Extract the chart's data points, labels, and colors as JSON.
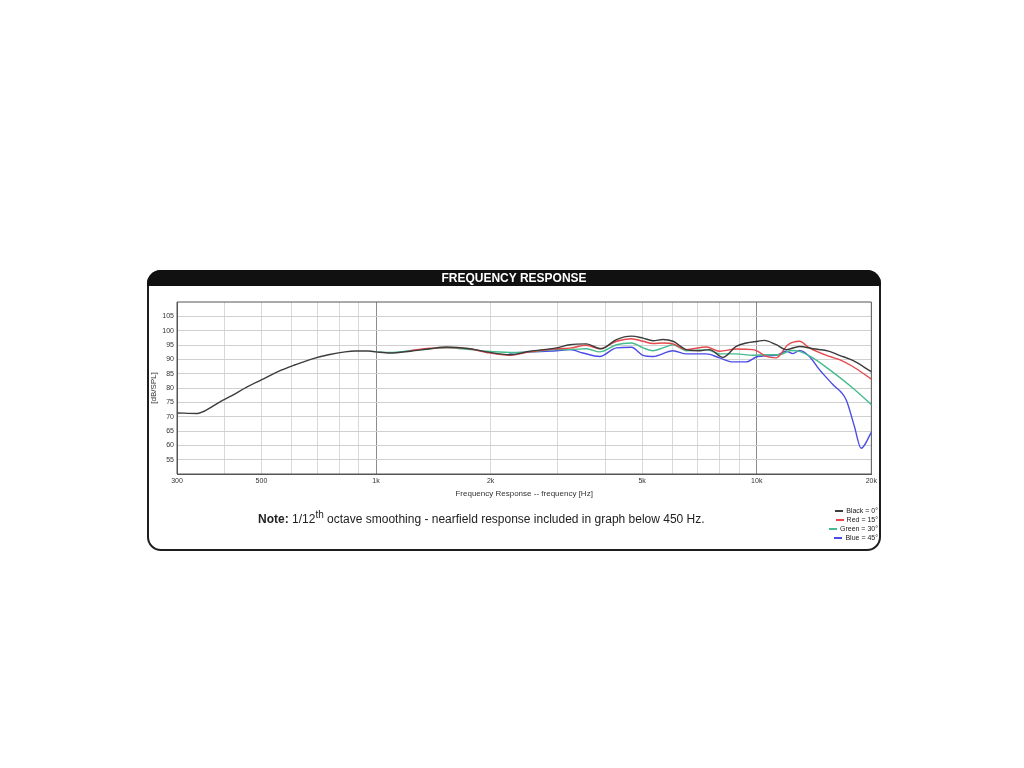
{
  "chart_data": {
    "type": "line",
    "title": "FREQUENCY RESPONSE",
    "xlabel": "Frequency Response -- frequency [Hz]",
    "ylabel": "[dB/SPL]",
    "annotations": [
      "Note: 1/12$^{th}$ octave smoothing - nearfield response included in graph below 450 Hz."
    ],
    "log": "x",
    "grid": true,
    "legend": "bottom right",
    "marker": "none",
    "line_style": "solid",
    "xlim": [
      300,
      20000
    ],
    "xticks": [
      {
        "value": 300,
        "label": "300"
      },
      {
        "value": 400,
        "label": null
      },
      {
        "value": 500,
        "label": "500"
      },
      {
        "value": 600,
        "label": null
      },
      {
        "value": 700,
        "label": null
      },
      {
        "value": 800,
        "label": null
      },
      {
        "value": 900,
        "label": null
      },
      {
        "value": 1000,
        "label": "1k"
      },
      {
        "value": 2000,
        "label": "2k"
      },
      {
        "value": 3000,
        "label": null
      },
      {
        "value": 4000,
        "label": null
      },
      {
        "value": 5000,
        "label": "5k"
      },
      {
        "value": 6000,
        "label": null
      },
      {
        "value": 7000,
        "label": null
      },
      {
        "value": 8000,
        "label": null
      },
      {
        "value": 9000,
        "label": null
      },
      {
        "value": 10000,
        "label": "10k"
      },
      {
        "value": 20000,
        "label": "20k"
      }
    ],
    "ylim": [
      50,
      110
    ],
    "yticks": [
      55,
      60,
      65,
      70,
      75,
      80,
      85,
      90,
      95,
      100,
      105
    ],
    "series": [
      {
        "name": "Black = 0°",
        "color": "#3c3c3c",
        "x": [
          300,
          340,
          352,
          394,
          418,
          453,
          501,
          554,
          613,
          677,
          750,
          829,
          880,
          954,
          1000,
          1088,
          1228,
          1386,
          1532,
          1765,
          1951,
          2246,
          2535,
          2979,
          3228,
          3570,
          3900,
          4279,
          4686,
          5026,
          5340,
          5670,
          6025,
          6531,
          7080,
          7520,
          8147,
          8830,
          9387,
          10070,
          10460,
          11250,
          11950,
          12950,
          14040,
          15520,
          16490,
          17870,
          20000
        ],
        "values": [
          71.3,
          71.1,
          71.8,
          75.6,
          77.3,
          80.0,
          82.9,
          85.8,
          88.1,
          90.1,
          91.6,
          92.6,
          92.9,
          92.9,
          92.6,
          92.2,
          92.8,
          93.7,
          94.3,
          93.7,
          92.6,
          91.6,
          92.8,
          94.0,
          95.1,
          95.4,
          93.7,
          96.9,
          98.1,
          97.4,
          96.5,
          96.9,
          96.3,
          93.4,
          93.0,
          93.4,
          90.7,
          94.5,
          95.7,
          96.3,
          96.6,
          95.1,
          93.4,
          94.5,
          93.7,
          92.8,
          91.4,
          89.6,
          85.7
        ]
      },
      {
        "name": "Red = 15°",
        "color": "#e5484d",
        "x": [
          1228,
          1386,
          1532,
          1765,
          1951,
          2246,
          2535,
          2979,
          3228,
          3570,
          3869,
          4279,
          4686,
          5026,
          5340,
          5670,
          6025,
          6531,
          7370,
          7988,
          8830,
          9766,
          10070,
          10590,
          11250,
          12080,
          12950,
          13750,
          15520,
          16490,
          17870,
          20000
        ],
        "values": [
          93.0,
          93.9,
          94.1,
          93.7,
          92.4,
          91.4,
          92.6,
          93.7,
          93.9,
          94.9,
          93.7,
          96.3,
          97.2,
          96.3,
          95.5,
          95.7,
          95.4,
          93.4,
          94.3,
          92.8,
          93.6,
          93.4,
          92.8,
          91.0,
          90.5,
          95.1,
          96.3,
          94.0,
          91.0,
          89.9,
          87.5,
          83.1
        ]
      },
      {
        "name": "Green = 30°",
        "color": "#45bd8c",
        "x": [
          1000,
          1088,
          1228,
          1386,
          1532,
          1765,
          1951,
          2246,
          2535,
          2979,
          3228,
          3570,
          3869,
          4279,
          4686,
          5026,
          5340,
          5670,
          6025,
          6531,
          7370,
          7988,
          8830,
          9766,
          10590,
          11470,
          12310,
          12950,
          14040,
          15520,
          17870,
          20000
        ],
        "values": [
          92.6,
          92.4,
          93.0,
          93.7,
          94.0,
          93.4,
          92.8,
          92.4,
          92.6,
          93.4,
          93.4,
          93.7,
          92.6,
          95.1,
          95.7,
          94.0,
          93.0,
          94.0,
          95.1,
          93.0,
          93.4,
          91.9,
          91.9,
          91.4,
          91.6,
          91.6,
          93.1,
          92.8,
          90.5,
          86.4,
          80.0,
          74.2
        ]
      },
      {
        "name": "Blue = 45°",
        "color": "#4b4be6",
        "x": [
          2246,
          2535,
          2979,
          3228,
          3498,
          3869,
          4279,
          4686,
          5026,
          5340,
          6025,
          6531,
          7370,
          7988,
          8657,
          9387,
          10070,
          11250,
          11950,
          12440,
          12950,
          13750,
          14610,
          15840,
          17170,
          18050,
          18800,
          20000
        ],
        "values": [
          92.2,
          92.6,
          93.0,
          93.4,
          92.2,
          91.0,
          94.0,
          94.2,
          91.4,
          91.0,
          93.0,
          91.9,
          91.9,
          90.5,
          89.1,
          89.1,
          91.0,
          91.4,
          92.8,
          92.0,
          93.1,
          91.0,
          86.4,
          81.2,
          75.9,
          66.6,
          59.0,
          64.5
        ]
      }
    ]
  }
}
